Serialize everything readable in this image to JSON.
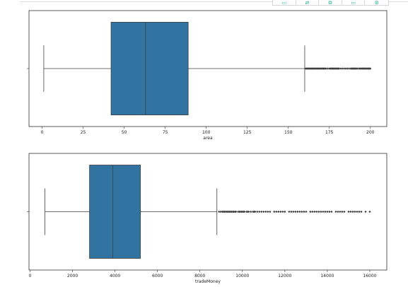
{
  "toolbar": {
    "icons": [
      "chart-icon",
      "swap-icon",
      "filter-icon",
      "table-icon",
      "settings-icon"
    ],
    "accent_color": "#20b48c"
  },
  "chart_data": [
    {
      "type": "boxplot",
      "orientation": "horizontal",
      "xlabel": "area",
      "xlim": [
        -8,
        210
      ],
      "x_ticks": [
        0,
        25,
        50,
        75,
        100,
        125,
        150,
        175,
        200
      ],
      "whisker_low": 1,
      "q1": 42,
      "median": 63,
      "q3": 89,
      "whisker_high": 160,
      "outlier_range": [
        160,
        200
      ],
      "box_color": "#3274a1",
      "outliers": [
        160.5,
        161,
        161.5,
        162,
        162.5,
        163,
        163.5,
        164,
        164.5,
        165,
        165.5,
        166,
        166.5,
        167,
        167.5,
        168,
        168.5,
        169,
        169.5,
        170,
        170.5,
        171,
        171.5,
        172,
        172.5,
        173,
        174,
        175,
        175.5,
        176,
        176.5,
        177,
        177.5,
        178,
        178.5,
        179,
        179.5,
        180,
        180.5,
        181,
        182,
        183,
        184,
        185,
        186,
        187,
        188,
        188.5,
        189,
        189.5,
        190,
        190.5,
        191,
        191.5,
        192,
        193,
        193.5,
        194,
        194.5,
        195,
        195.5,
        196,
        196.5,
        197,
        197.5,
        198,
        198.5,
        199,
        199.5,
        200
      ]
    },
    {
      "type": "boxplot",
      "orientation": "horizontal",
      "xlabel": "tradeMoney",
      "xlim": [
        -50,
        16800
      ],
      "x_ticks": [
        0,
        2000,
        4000,
        6000,
        8000,
        10000,
        12000,
        14000,
        16000
      ],
      "whisker_low": 700,
      "q1": 2800,
      "median": 3900,
      "q3": 5200,
      "whisker_high": 8800,
      "outlier_range": [
        8800,
        16000
      ],
      "box_color": "#3274a1",
      "outliers": [
        8900,
        8980,
        9050,
        9100,
        9150,
        9200,
        9260,
        9300,
        9350,
        9400,
        9450,
        9500,
        9560,
        9600,
        9650,
        9700,
        9800,
        9850,
        9900,
        9950,
        10000,
        10050,
        10100,
        10200,
        10250,
        10300,
        10400,
        10500,
        10550,
        10600,
        10700,
        10800,
        10900,
        11000,
        11100,
        11200,
        11300,
        11500,
        11600,
        11700,
        11800,
        11900,
        12000,
        12200,
        12300,
        12400,
        12500,
        12600,
        12700,
        12800,
        12900,
        13000,
        13200,
        13300,
        13400,
        13500,
        13600,
        13700,
        13800,
        13900,
        14000,
        14100,
        14200,
        14400,
        14500,
        14600,
        14700,
        14800,
        15000,
        15100,
        15200,
        15300,
        15400,
        15500,
        15600,
        15800,
        16000
      ]
    }
  ]
}
